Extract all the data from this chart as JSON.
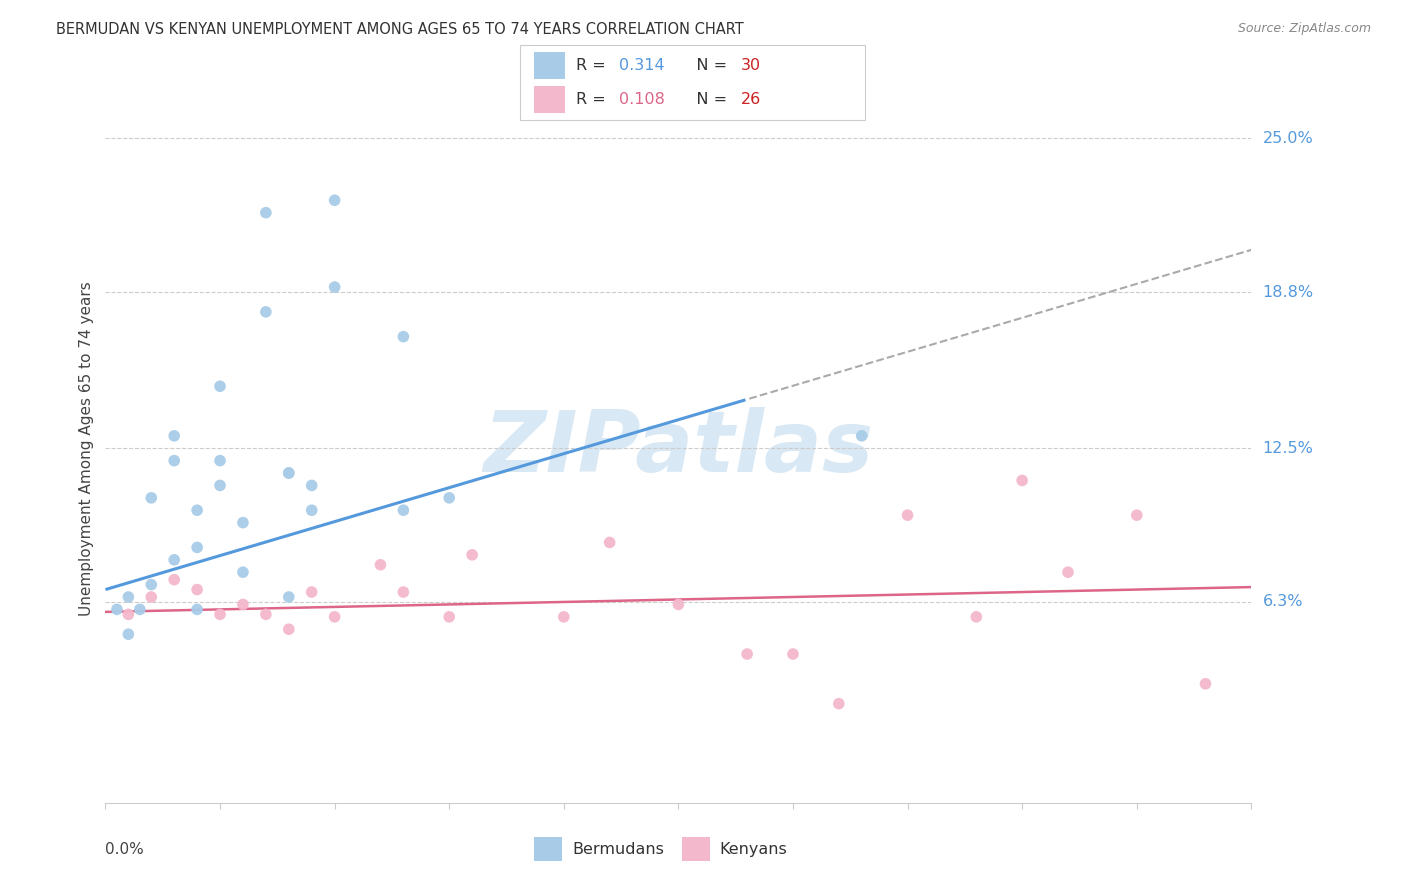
{
  "title": "BERMUDAN VS KENYAN UNEMPLOYMENT AMONG AGES 65 TO 74 YEARS CORRELATION CHART",
  "source": "Source: ZipAtlas.com",
  "ylabel": "Unemployment Among Ages 65 to 74 years",
  "ytick_values": [
    0.063,
    0.125,
    0.188,
    0.25
  ],
  "ytick_labels": [
    "6.3%",
    "12.5%",
    "18.8%",
    "25.0%"
  ],
  "xlim": [
    0.0,
    0.05
  ],
  "ylim": [
    -0.018,
    0.268
  ],
  "legend1_r": "R = 0.314",
  "legend1_n": "N = 30",
  "legend2_r": "R = 0.108",
  "legend2_n": "N = 26",
  "blue_scatter_color": "#a8cce8",
  "pink_scatter_color": "#f4b8cc",
  "blue_line_color": "#5599dd",
  "pink_line_color": "#dd6688",
  "dash_line_color": "#aaaaaa",
  "bermudans_x": [
    0.0005,
    0.001,
    0.0015,
    0.002,
    0.002,
    0.003,
    0.003,
    0.003,
    0.004,
    0.004,
    0.004,
    0.005,
    0.005,
    0.005,
    0.006,
    0.006,
    0.007,
    0.007,
    0.008,
    0.008,
    0.008,
    0.009,
    0.009,
    0.01,
    0.01,
    0.013,
    0.013,
    0.015,
    0.033,
    0.001
  ],
  "bermudans_y": [
    0.06,
    0.05,
    0.06,
    0.07,
    0.105,
    0.08,
    0.12,
    0.13,
    0.06,
    0.085,
    0.1,
    0.11,
    0.12,
    0.15,
    0.075,
    0.095,
    0.18,
    0.22,
    0.115,
    0.115,
    0.065,
    0.1,
    0.11,
    0.225,
    0.19,
    0.17,
    0.1,
    0.105,
    0.13,
    0.065
  ],
  "kenyans_x": [
    0.001,
    0.002,
    0.003,
    0.004,
    0.005,
    0.006,
    0.007,
    0.008,
    0.009,
    0.01,
    0.012,
    0.013,
    0.015,
    0.016,
    0.02,
    0.022,
    0.025,
    0.028,
    0.03,
    0.032,
    0.035,
    0.038,
    0.04,
    0.042,
    0.045,
    0.048
  ],
  "kenyans_y": [
    0.058,
    0.065,
    0.072,
    0.068,
    0.058,
    0.062,
    0.058,
    0.052,
    0.067,
    0.057,
    0.078,
    0.067,
    0.057,
    0.082,
    0.057,
    0.087,
    0.062,
    0.042,
    0.042,
    0.022,
    0.098,
    0.057,
    0.112,
    0.075,
    0.098,
    0.03
  ],
  "blue_trend_y0": 0.068,
  "blue_trend_y1": 0.205,
  "pink_trend_y0": 0.059,
  "pink_trend_y1": 0.069,
  "blue_dash_split": 0.028,
  "watermark_text": "ZIPatlas",
  "watermark_color": "#c8dff0",
  "grid_color": "#cccccc",
  "spine_color": "#cccccc"
}
